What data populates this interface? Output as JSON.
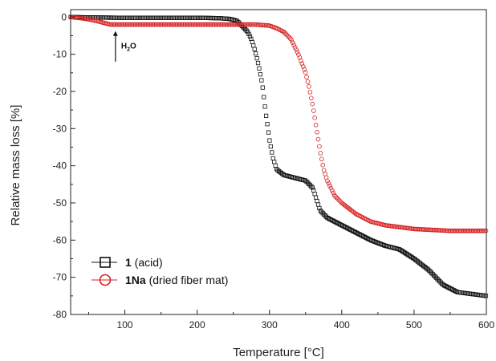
{
  "chart_data": {
    "type": "scatter",
    "xlabel": "Temperature [°C]",
    "ylabel": "Relative mass loss [%]",
    "xlim": [
      25,
      600
    ],
    "ylim": [
      -80,
      2
    ],
    "x_ticks": [
      100,
      200,
      300,
      400,
      500,
      600
    ],
    "y_ticks": [
      0,
      -10,
      -20,
      -30,
      -40,
      -50,
      -60,
      -70,
      -80
    ],
    "x_tick_labels": [
      "100",
      "200",
      "300",
      "400",
      "500",
      "600"
    ],
    "y_tick_labels": [
      "0",
      "-10",
      "-20",
      "-30",
      "-40",
      "-50",
      "-60",
      "-70",
      "-80"
    ],
    "grid": false,
    "legend_position": "bottom-left",
    "annotation": {
      "main": "H",
      "sub": "2",
      "tail": "O",
      "x": 87,
      "y_from": -12,
      "y_to": -4
    },
    "series": [
      {
        "name": "1",
        "name_suffix": " (acid)",
        "marker": "square",
        "color": "#111111",
        "points": [
          [
            25,
            0
          ],
          [
            50,
            -0.1
          ],
          [
            100,
            -0.2
          ],
          [
            150,
            -0.2
          ],
          [
            200,
            -0.2
          ],
          [
            230,
            -0.3
          ],
          [
            245,
            -0.5
          ],
          [
            255,
            -1
          ],
          [
            260,
            -2
          ],
          [
            265,
            -3
          ],
          [
            270,
            -4
          ],
          [
            275,
            -6
          ],
          [
            280,
            -9
          ],
          [
            285,
            -13
          ],
          [
            290,
            -18
          ],
          [
            295,
            -26
          ],
          [
            300,
            -33
          ],
          [
            305,
            -38
          ],
          [
            310,
            -41
          ],
          [
            320,
            -42.5
          ],
          [
            330,
            -43
          ],
          [
            340,
            -43.5
          ],
          [
            350,
            -44
          ],
          [
            355,
            -45
          ],
          [
            360,
            -46
          ],
          [
            365,
            -49
          ],
          [
            370,
            -52
          ],
          [
            380,
            -54
          ],
          [
            390,
            -55
          ],
          [
            400,
            -56
          ],
          [
            420,
            -58
          ],
          [
            440,
            -60
          ],
          [
            460,
            -61.5
          ],
          [
            480,
            -62.5
          ],
          [
            500,
            -65
          ],
          [
            520,
            -68
          ],
          [
            540,
            -72
          ],
          [
            560,
            -74
          ],
          [
            580,
            -74.5
          ],
          [
            600,
            -75
          ]
        ]
      },
      {
        "name": "1Na",
        "name_suffix": " (dried fiber mat)",
        "marker": "circle",
        "color": "#d62020",
        "points": [
          [
            25,
            0
          ],
          [
            40,
            -0.3
          ],
          [
            50,
            -0.6
          ],
          [
            60,
            -1
          ],
          [
            70,
            -1.5
          ],
          [
            80,
            -2
          ],
          [
            100,
            -2
          ],
          [
            150,
            -2
          ],
          [
            200,
            -2
          ],
          [
            250,
            -2
          ],
          [
            280,
            -2
          ],
          [
            300,
            -2.3
          ],
          [
            310,
            -3
          ],
          [
            320,
            -4
          ],
          [
            330,
            -6
          ],
          [
            340,
            -10
          ],
          [
            350,
            -15
          ],
          [
            355,
            -19
          ],
          [
            360,
            -24
          ],
          [
            365,
            -30
          ],
          [
            370,
            -36
          ],
          [
            375,
            -41
          ],
          [
            380,
            -44
          ],
          [
            385,
            -46
          ],
          [
            390,
            -48
          ],
          [
            400,
            -50
          ],
          [
            420,
            -53
          ],
          [
            440,
            -55
          ],
          [
            460,
            -56
          ],
          [
            480,
            -56.5
          ],
          [
            500,
            -57
          ],
          [
            550,
            -57.5
          ],
          [
            600,
            -57.5
          ]
        ]
      }
    ]
  }
}
